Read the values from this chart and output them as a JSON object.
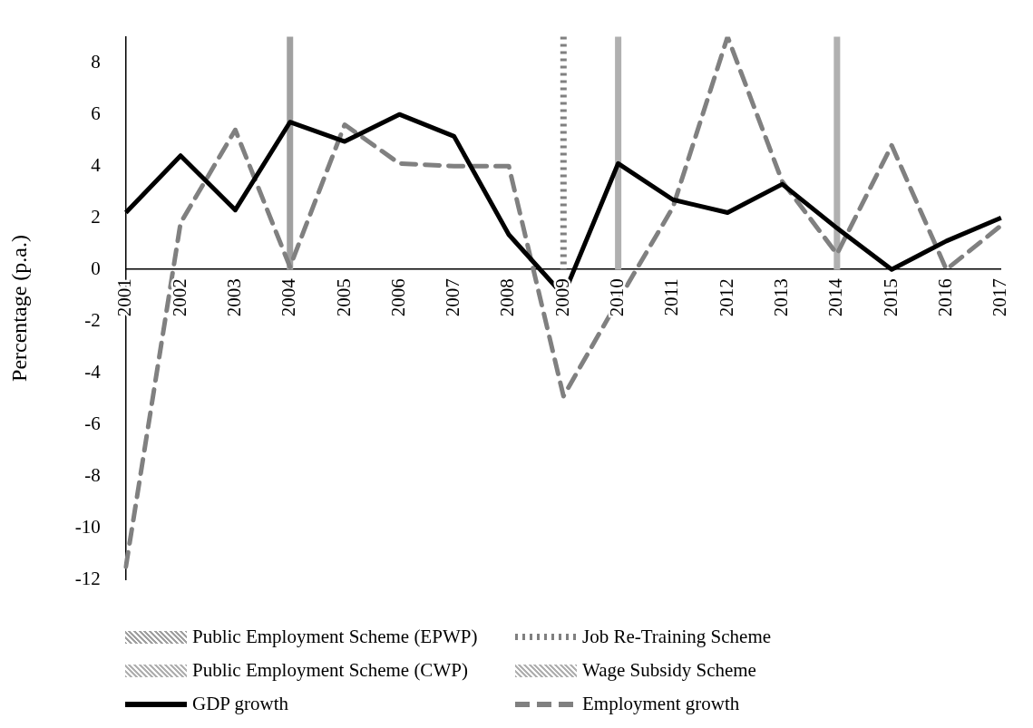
{
  "chart_data": {
    "type": "line",
    "ylabel": "Percentage (p.a.)",
    "categories": [
      "2001",
      "2002",
      "2003",
      "2004",
      "2005",
      "2006",
      "2007",
      "2008",
      "2009",
      "2010",
      "2011",
      "2012",
      "2013",
      "2014",
      "2015",
      "2016",
      "2017"
    ],
    "series": [
      {
        "name": "GDP growth",
        "color": "#000000",
        "line_style": "solid",
        "values": [
          2.2,
          4.4,
          2.3,
          5.7,
          4.95,
          6.0,
          5.15,
          1.35,
          -1.0,
          4.1,
          2.7,
          2.2,
          3.3,
          1.6,
          0.0,
          1.1,
          2.0
        ]
      },
      {
        "name": "Employment growth",
        "color": "#808080",
        "line_style": "dashed",
        "values": [
          -11.5,
          1.8,
          5.4,
          0.1,
          5.6,
          4.1,
          4.0,
          4.0,
          -4.9,
          -1.2,
          2.4,
          9.0,
          3.4,
          0.6,
          4.8,
          0.0,
          1.7
        ]
      }
    ],
    "ref_lines": [
      {
        "axis": "x",
        "value": "2004",
        "label": "Public Employment Scheme (EPWP)",
        "color": "#a0a0a0",
        "line_style": "solid"
      },
      {
        "axis": "x",
        "value": "2009",
        "label": "Job Re-Training Scheme",
        "color": "#808080",
        "line_style": "dotted"
      },
      {
        "axis": "x",
        "value": "2010",
        "label": "Public Employment Scheme (CWP)",
        "color": "#b0b0b0",
        "line_style": "solid"
      },
      {
        "axis": "x",
        "value": "2014",
        "label": "Wage Subsidy Scheme",
        "color": "#b0b0b0",
        "line_style": "solid"
      }
    ],
    "ylim": [
      -12,
      9
    ],
    "yticks": [
      -12,
      -10,
      -8,
      -6,
      -4,
      -2,
      0,
      2,
      4,
      6,
      8
    ],
    "grid": false,
    "legend": "bottom",
    "marker": "none"
  }
}
